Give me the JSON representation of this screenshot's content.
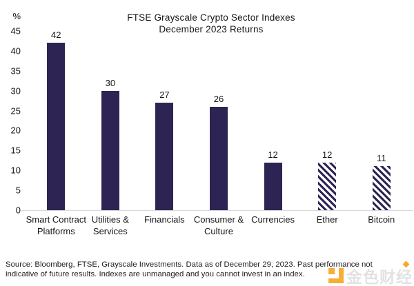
{
  "chart_data": {
    "type": "bar",
    "title": "FTSE Grayscale Crypto Sector Indexes",
    "subtitle": "December 2023 Returns",
    "unit_label": "%",
    "categories": [
      "Smart Contract Platforms",
      "Utilities & Services",
      "Financials",
      "Consumer & Culture",
      "Currencies",
      "Ether",
      "Bitcoin"
    ],
    "values": [
      42,
      30,
      27,
      26,
      12,
      12,
      11
    ],
    "bar_styles": [
      "solid",
      "solid",
      "solid",
      "solid",
      "solid",
      "hatched",
      "hatched"
    ],
    "ylim": [
      0,
      45
    ],
    "yticks": [
      45,
      40,
      35,
      30,
      25,
      20,
      15,
      10,
      5,
      0
    ],
    "ytick_interval": 5,
    "grid": false,
    "legend_position": "none",
    "bar_color": "#2e2453",
    "axis_line_color": "#d9d9d9"
  },
  "footer": {
    "lines": [
      "Source: Bloomberg, FTSE, Grayscale Investments. Data as of December 29, 2023. Past performance not",
      "indicative of future results. Indexes are unmanaged and you cannot invest in an index."
    ]
  },
  "watermark": {
    "text": "金色财经",
    "logo_color": "#f8a21c"
  }
}
